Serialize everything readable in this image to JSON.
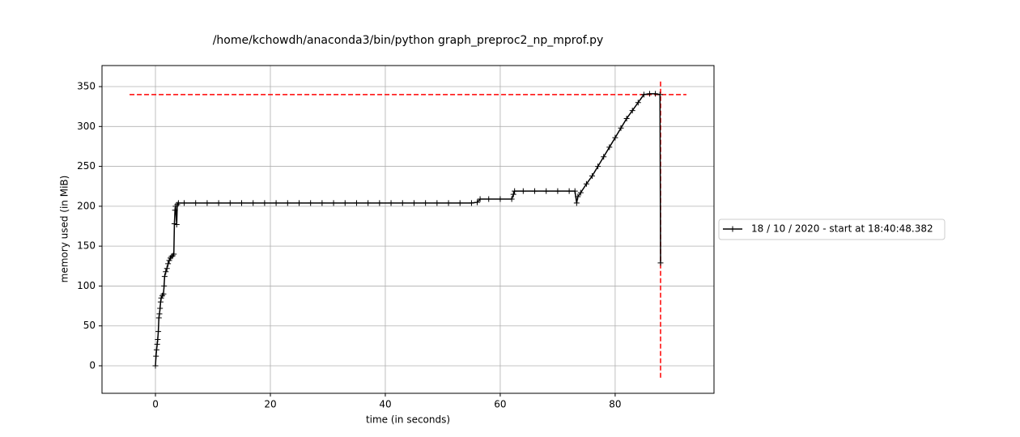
{
  "chart_data": {
    "type": "line",
    "title": "/home/kchowdh/anaconda3/bin/python graph_preproc2_np_mprof.py",
    "x_label": "time (in seconds)",
    "y_label": "memory used (in MiB)",
    "x": [
      0,
      0.1,
      0.2,
      0.3,
      0.4,
      0.5,
      0.6,
      0.7,
      0.8,
      0.9,
      1.0,
      1.2,
      1.4,
      1.5,
      1.6,
      1.8,
      2.0,
      2.2,
      2.4,
      2.6,
      2.8,
      3.0,
      3.2,
      3.3,
      3.4,
      3.5,
      3.7,
      3.8,
      4.0,
      5,
      7,
      9,
      11,
      13,
      15,
      17,
      19,
      21,
      23,
      25,
      27,
      29,
      31,
      33,
      35,
      37,
      39,
      41,
      43,
      45,
      47,
      49,
      51,
      53,
      55,
      56,
      56.5,
      58,
      60,
      62,
      62.3,
      62.5,
      64,
      66,
      68,
      70,
      72,
      73,
      73.3,
      73.5,
      74,
      75,
      76,
      77,
      78,
      79,
      80,
      81,
      82,
      83,
      84,
      85,
      86,
      87,
      87.8,
      87.9
    ],
    "series": [
      {
        "name": "18 / 10 / 2020 - start at 18:40:48.382",
        "color": "#000000",
        "values": [
          0,
          12,
          20,
          27,
          33,
          43,
          60,
          65,
          72,
          80,
          85,
          88,
          90,
          100,
          112,
          118,
          122,
          128,
          132,
          135,
          137,
          138,
          140,
          178,
          195,
          200,
          177,
          202,
          204,
          204,
          204,
          204,
          204,
          204,
          204,
          204,
          204,
          204,
          204,
          204,
          204,
          204,
          204,
          204,
          204,
          204,
          204,
          204,
          204,
          204,
          204,
          204,
          204,
          204,
          204,
          205,
          209,
          209,
          209,
          209,
          215,
          219,
          219,
          219,
          219,
          219,
          219,
          219,
          204,
          212,
          217,
          228,
          238,
          250,
          262,
          274,
          286,
          298,
          310,
          320,
          330,
          340,
          341,
          341,
          340,
          129
        ]
      }
    ],
    "hlines": [
      {
        "y": 340,
        "xmin": -4.5,
        "xmax": 92.4,
        "color": "#ff0000"
      }
    ],
    "vlines": [
      {
        "x": 87.9,
        "ymin": -15,
        "ymax": 358,
        "color": "#ff0000"
      }
    ],
    "xlim": [
      -9.3,
      97.2
    ],
    "ylim": [
      -34.5,
      376.4
    ],
    "xticks": [
      0,
      20,
      40,
      60,
      80
    ],
    "yticks": [
      0,
      50,
      100,
      150,
      200,
      250,
      300,
      350
    ],
    "grid": true,
    "legend": "right outside"
  }
}
